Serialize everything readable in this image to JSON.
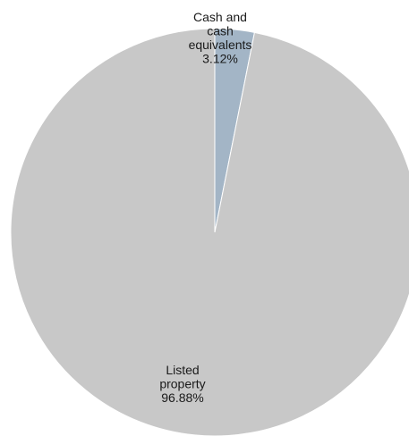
{
  "chart_data": {
    "type": "pie",
    "title": "",
    "start": "top",
    "direction": "clockwise",
    "legend": "none",
    "slices": [
      {
        "label_lines": [
          "Cash and",
          "cash",
          "equivalents"
        ],
        "label": "Cash and cash equivalents",
        "value": 3.12,
        "value_label": "3.12%",
        "color": "#a3b5c6"
      },
      {
        "label_lines": [
          "Listed",
          "property"
        ],
        "label": "Listed property",
        "value": 96.88,
        "value_label": "96.88%",
        "color": "#c8c8c8"
      }
    ]
  }
}
